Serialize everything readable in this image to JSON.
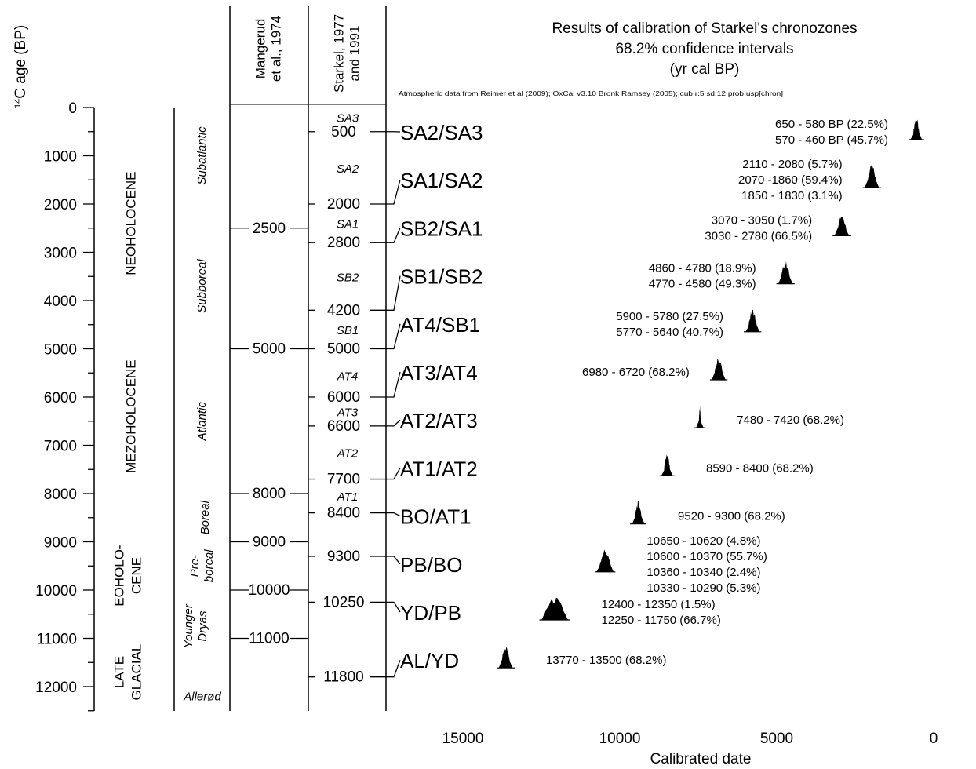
{
  "chart_data": {
    "type": "area",
    "title_lines": [
      "Results of calibration of Starkel's chronozones",
      "68.2% confidence intervals",
      "(yr cal BP)"
    ],
    "subtitle": "Atmospheric data from Reimer et al (2009); OxCal v3.10 Bronk Ramsey (2005); cub r:5 sd:12 prob usp[chron]",
    "y_axis": {
      "label": "age (BP)",
      "label_sup": "14",
      "label_pre": "C",
      "range": [
        0,
        12500
      ],
      "ticks": [
        0,
        1000,
        2000,
        3000,
        4000,
        5000,
        6000,
        7000,
        8000,
        9000,
        10000,
        11000,
        12000
      ]
    },
    "x_axis": {
      "label": "Calibrated date",
      "range": [
        17300,
        0
      ],
      "ticks": [
        15000,
        10000,
        5000,
        0
      ],
      "reversed": true
    },
    "columns": {
      "mangerud": {
        "header": [
          "Mangerud",
          "et al., 1974"
        ],
        "marks": [
          2500,
          5000,
          8000,
          9000,
          10000,
          11000
        ]
      },
      "starkel": {
        "header": [
          "Starkel, 1977",
          "and 1991"
        ],
        "marks": [
          500,
          2000,
          2800,
          4200,
          5000,
          6000,
          6600,
          7700,
          8400,
          9300,
          10250,
          11800
        ]
      }
    },
    "periods": [
      {
        "label": "NEOHOLOCENE",
        "center": 2400
      },
      {
        "label": "MEZOHOLOCENE",
        "center": 6400
      },
      {
        "lines": [
          "EOHOLO-",
          "CENE"
        ],
        "center": 9700
      },
      {
        "lines": [
          "LATE",
          "GLACIAL"
        ],
        "center": 11700
      }
    ],
    "chronozones": [
      {
        "label": "Subatlantic",
        "center": 1000
      },
      {
        "label": "Subboreal",
        "center": 3700
      },
      {
        "label": "Atlantic",
        "center": 6500
      },
      {
        "label": "Boreal",
        "center": 8500
      },
      {
        "lines": [
          "Pre-",
          "boreal"
        ],
        "center": 9500
      },
      {
        "lines": [
          "Younger",
          "Dryas"
        ],
        "center": 10750
      },
      {
        "label": "Allerød",
        "center": 12200
      }
    ],
    "subzones": [
      {
        "label": "SA3",
        "y": 200
      },
      {
        "label": "SA2",
        "y": 1250
      },
      {
        "label": "SA1",
        "y": 2400
      },
      {
        "label": "SB2",
        "y": 3500
      },
      {
        "label": "SB1",
        "y": 4600
      },
      {
        "label": "AT4",
        "y": 5550
      },
      {
        "label": "AT3",
        "y": 6300
      },
      {
        "label": "AT2",
        "y": 7150
      },
      {
        "label": "AT1",
        "y": 8050
      }
    ],
    "series": [
      {
        "name": "SA2/SA3",
        "y": 500,
        "x_range": [
          650,
          460
        ],
        "ranges": [
          "650 - 580 BP (22.5%)",
          "570 - 460 BP (45.7%)"
        ],
        "label_side": "left"
      },
      {
        "name": "SA1/SA2",
        "y": 2000,
        "x_range": [
          2110,
          1830
        ],
        "ranges": [
          "2110 - 2080 (5.7%)",
          "2070 -1860 (59.4%)",
          "1850 - 1830 (3.1%)"
        ],
        "label_side": "left"
      },
      {
        "name": "SB2/SA1",
        "y": 2800,
        "x_range": [
          3070,
          2780
        ],
        "ranges": [
          "3070 - 3050 (1.7%)",
          "3030 - 2780 (66.5%)"
        ],
        "label_side": "left"
      },
      {
        "name": "SB1/SB2",
        "y": 4200,
        "x_range": [
          4860,
          4580
        ],
        "ranges": [
          "4860 - 4780 (18.9%)",
          "4770 - 4580 (49.3%)"
        ],
        "label_side": "left"
      },
      {
        "name": "AT4/SB1",
        "y": 5000,
        "x_range": [
          5900,
          5640
        ],
        "ranges": [
          "5900 - 5780 (27.5%)",
          "5770 - 5640 (40.7%)"
        ],
        "label_side": "left"
      },
      {
        "name": "AT3/AT4",
        "y": 6000,
        "x_range": [
          6980,
          6720
        ],
        "ranges": [
          "6980 - 6720 (68.2%)"
        ],
        "label_side": "left"
      },
      {
        "name": "AT2/AT3",
        "y": 6600,
        "x_range": [
          7480,
          7420
        ],
        "ranges": [
          "7480 - 7420 (68.2%)"
        ],
        "label_side": "right"
      },
      {
        "name": "AT1/AT2",
        "y": 7700,
        "x_range": [
          8590,
          8400
        ],
        "ranges": [
          "8590 - 8400 (68.2%)"
        ],
        "label_side": "right"
      },
      {
        "name": "BO/AT1",
        "y": 8400,
        "x_range": [
          9520,
          9300
        ],
        "ranges": [
          "9520 - 9300 (68.2%)"
        ],
        "label_side": "right"
      },
      {
        "name": "PB/BO",
        "y": 9300,
        "x_range": [
          10650,
          10290
        ],
        "ranges": [
          "10650 - 10620 (4.8%)",
          "10600 - 10370 (55.7%)",
          "10360 - 10340 (2.4%)",
          "10330 - 10290 (5.3%)"
        ],
        "label_side": "right"
      },
      {
        "name": "YD/PB",
        "y": 10250,
        "x_range": [
          12400,
          11750
        ],
        "ranges": [
          "12400 - 12350 (1.5%)",
          "12250 - 11750 (66.7%)"
        ],
        "label_side": "right"
      },
      {
        "name": "AL/YD",
        "y": 11800,
        "x_range": [
          13770,
          13500
        ],
        "ranges": [
          "13770 - 13500 (68.2%)"
        ],
        "label_side": "right"
      }
    ]
  }
}
